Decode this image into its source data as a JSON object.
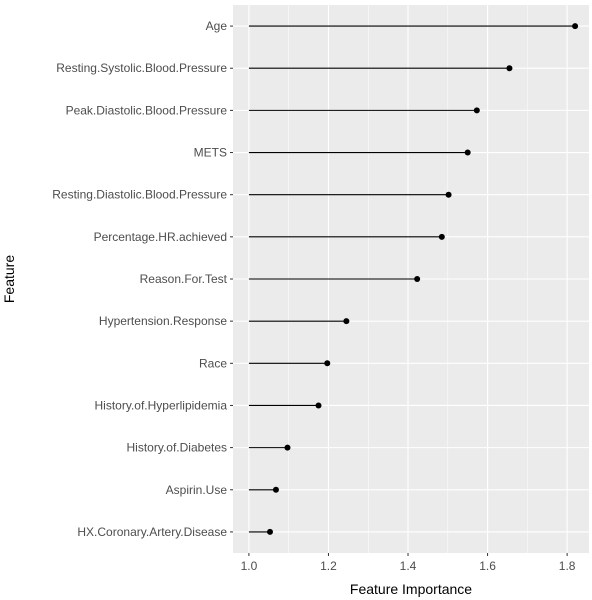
{
  "chart_data": {
    "type": "lollipop",
    "title": "",
    "xlabel": "Feature Importance",
    "ylabel": "Feature",
    "xlim": [
      0.96,
      1.855
    ],
    "x_ticks": [
      1.0,
      1.2,
      1.4,
      1.6,
      1.8
    ],
    "x_tick_labels": [
      "1.0",
      "1.2",
      "1.4",
      "1.6",
      "1.8"
    ],
    "baseline": 1.0,
    "grid": true,
    "panel_color": "#ebebeb",
    "grid_color": "#ffffff",
    "point_color": "#000000",
    "categories": [
      "Age",
      "Resting.Systolic.Blood.Pressure",
      "Peak.Diastolic.Blood.Pressure",
      "METS",
      "Resting.Diastolic.Blood.Pressure",
      "Percentage.HR.achieved",
      "Reason.For.Test",
      "Hypertension.Response",
      "Race",
      "History.of.Hyperlipidemia",
      "History.of.Diabetes",
      "Aspirin.Use",
      "HX.Coronary.Artery.Disease"
    ],
    "values": [
      1.82,
      1.655,
      1.573,
      1.55,
      1.502,
      1.485,
      1.423,
      1.245,
      1.197,
      1.175,
      1.097,
      1.068,
      1.053
    ]
  }
}
